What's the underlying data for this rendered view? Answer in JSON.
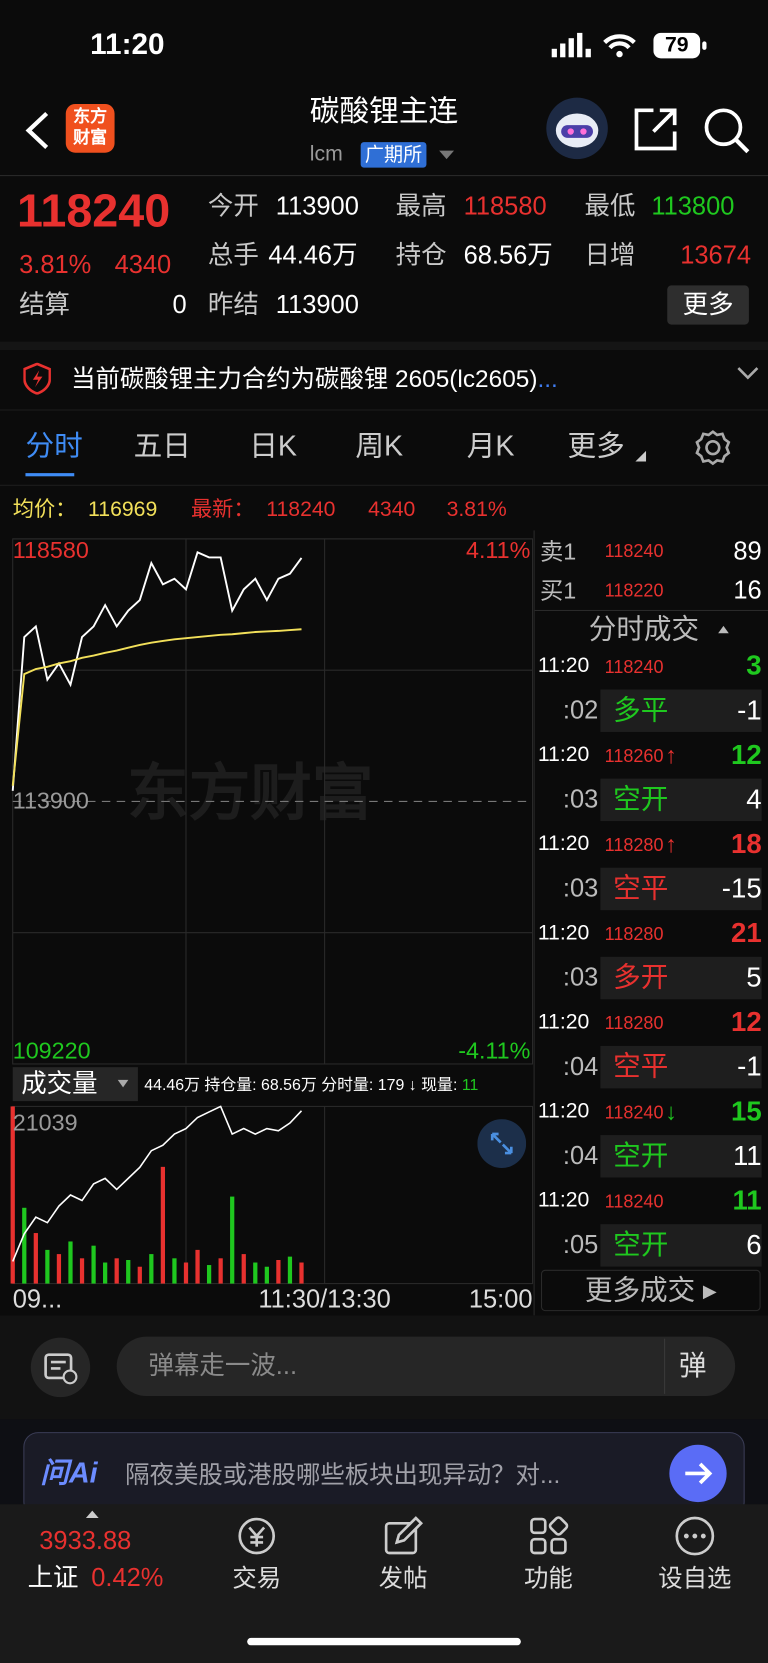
{
  "status_bar": {
    "time": "11:20",
    "battery": "79"
  },
  "header": {
    "logo_line1": "东方",
    "logo_line2": "财富",
    "title": "碳酸锂主连",
    "code": "lcm",
    "exchange": "广期所"
  },
  "quote": {
    "price": "118240",
    "change_pct": "3.81%",
    "change": "4340",
    "fields": [
      {
        "label": "今开",
        "value": "113900"
      },
      {
        "label": "最高",
        "value": "118580"
      },
      {
        "label": "最低",
        "value": "113800"
      },
      {
        "label": "总手",
        "value": "44.46万"
      },
      {
        "label": "持仓",
        "value": "68.56万"
      },
      {
        "label": "日增",
        "value": "13674"
      },
      {
        "label": "结算",
        "value": "0"
      },
      {
        "label": "昨结",
        "value": "113900"
      }
    ],
    "more": "更多"
  },
  "notice": {
    "text": "当前碳酸锂主力合约为碳酸锂 2605(lc2605)",
    "ellipsis": "..."
  },
  "tabs": [
    "分时",
    "五日",
    "日K",
    "周K",
    "月K",
    "更多"
  ],
  "info": {
    "avg": "116969",
    "last": "118240",
    "change": "4340",
    "pct": "3.81%"
  },
  "chart_data": {
    "type": "line",
    "watermark": "东方财富",
    "x": [
      0,
      5,
      10,
      15,
      20,
      25,
      30,
      35,
      40,
      45,
      50,
      55,
      60,
      65,
      70,
      75,
      80,
      85,
      90,
      95,
      100,
      105,
      110,
      115,
      120,
      125
    ],
    "xlim": [
      0,
      225
    ],
    "xticks": [
      {
        "value": 0,
        "label": "09..."
      },
      {
        "value": 135,
        "label": "11:30/13:30"
      },
      {
        "value": 225,
        "label": "15:00"
      }
    ],
    "xgrid": [
      75,
      135
    ],
    "ylim": [
      109220,
      118580
    ],
    "yticks": [
      109220,
      113900,
      118580
    ],
    "ygrid": [
      111560,
      116240
    ],
    "y2lim": [
      -4.11,
      4.11
    ],
    "y2ticks": [
      {
        "value": -4.11,
        "label": "-4.11%"
      },
      {
        "value": 4.11,
        "label": "4.11%"
      }
    ],
    "series": [
      {
        "name": "最新：",
        "color": "#ffffff",
        "values": [
          114090,
          116830,
          117020,
          116070,
          116360,
          115980,
          116830,
          117020,
          117400,
          117020,
          117300,
          117490,
          118150,
          117770,
          117870,
          117680,
          118340,
          118250,
          118250,
          117300,
          117680,
          117870,
          117490,
          117870,
          117960,
          118240
        ]
      },
      {
        "name": "均价：",
        "color": "#f2e05a",
        "values": [
          114180,
          116170,
          116260,
          116300,
          116360,
          116400,
          116460,
          116500,
          116550,
          116590,
          116640,
          116690,
          116730,
          116760,
          116790,
          116810,
          116830,
          116850,
          116870,
          116880,
          116900,
          116920,
          116930,
          116940,
          116955,
          116969
        ]
      }
    ],
    "volume": {
      "name": "成交量",
      "ylim": [
        0,
        21039
      ],
      "yticks": [
        21039
      ],
      "values": [
        21039,
        9000,
        6000,
        4000,
        3500,
        5000,
        3000,
        4500,
        2500,
        3000,
        2800,
        2000,
        3500,
        13860,
        3000,
        2500,
        4000,
        2200,
        3000,
        10330,
        3500,
        2500,
        2000,
        2800,
        3200,
        2500
      ],
      "colors": [
        "#e8312f",
        "#1fc81f",
        "#e8312f",
        "#1fc81f",
        "#e8312f",
        "#1fc81f",
        "#e8312f",
        "#1fc81f",
        "#1fc81f",
        "#e8312f",
        "#1fc81f",
        "#e8312f",
        "#1fc81f",
        "#e8312f",
        "#1fc81f",
        "#e8312f",
        "#e8312f",
        "#1fc81f",
        "#e8312f",
        "#1fc81f",
        "#e8312f",
        "#1fc81f",
        "#1fc81f",
        "#e8312f",
        "#1fc81f",
        "#e8312f"
      ]
    },
    "open_interest": {
      "color": "#ffffff",
      "lim": [
        67.0,
        68.6
      ],
      "values": [
        67.2,
        67.45,
        67.6,
        67.55,
        67.7,
        67.8,
        67.75,
        67.9,
        67.95,
        67.85,
        67.95,
        68.05,
        68.2,
        68.25,
        68.35,
        68.4,
        68.5,
        68.55,
        68.6,
        68.35,
        68.4,
        68.35,
        68.4,
        68.38,
        68.45,
        68.56
      ]
    }
  },
  "volume_info": {
    "label": "成交量",
    "total": "44.46万",
    "oi_label": "持仓量:",
    "oi": "68.56万",
    "minute_label": "分时量:",
    "minute": "179",
    "arrow": "↓",
    "now_label": "现量:",
    "now": "11"
  },
  "order_book": [
    {
      "label": "卖1",
      "price": "118240",
      "volume": "89"
    },
    {
      "label": "买1",
      "price": "118220",
      "volume": "16"
    }
  ],
  "trades": {
    "title": "分时成交",
    "more": "更多成交",
    "items": [
      {
        "time": "11:20",
        "price": "118240",
        "volume": "3",
        "sec": ":02",
        "kind": "多平",
        "oi": "-1",
        "color": "#1fc81f"
      },
      {
        "time": "11:20",
        "price": "118260",
        "arrow": "↑",
        "volume": "12",
        "sec": ":03",
        "kind": "空开",
        "oi": "4",
        "color": "#1fc81f"
      },
      {
        "time": "11:20",
        "price": "118280",
        "arrow": "↑",
        "volume": "18",
        "sec": ":03",
        "kind": "空平",
        "oi": "-15",
        "color": "#e8312f"
      },
      {
        "time": "11:20",
        "price": "118280",
        "volume": "21",
        "sec": ":03",
        "kind": "多开",
        "oi": "5",
        "color": "#e8312f"
      },
      {
        "time": "11:20",
        "price": "118280",
        "volume": "12",
        "sec": ":04",
        "kind": "空平",
        "oi": "-1",
        "color": "#e8312f"
      },
      {
        "time": "11:20",
        "price": "118240",
        "arrow": "↓",
        "volume": "15",
        "sec": ":04",
        "kind": "空开",
        "oi": "11",
        "color": "#1fc81f"
      },
      {
        "time": "11:20",
        "price": "118240",
        "volume": "11",
        "sec": ":05",
        "kind": "空开",
        "oi": "6",
        "color": "#1fc81f"
      }
    ]
  },
  "danmaku": {
    "placeholder": "弹幕走一波...",
    "button": "弹"
  },
  "ai_bar": {
    "logo": "问Ai",
    "text": "隔夜美股或港股哪些板块出现异动？对..."
  },
  "nav": {
    "index_value": "3933.88",
    "index_name": "上证",
    "index_pct": "0.42%",
    "items": [
      "交易",
      "发帖",
      "功能",
      "设自选"
    ]
  }
}
